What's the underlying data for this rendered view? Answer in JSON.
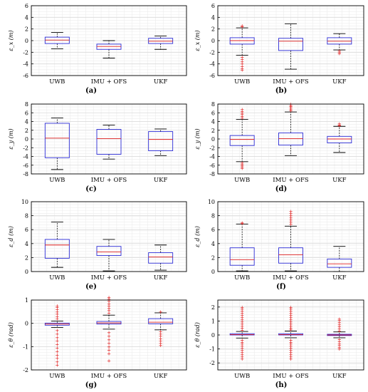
{
  "figure": {
    "panels": [
      {
        "letter": "(a)"
      },
      {
        "letter": "(b)"
      },
      {
        "letter": "(c)"
      },
      {
        "letter": "(d)"
      },
      {
        "letter": "(e)"
      },
      {
        "letter": "(f)"
      },
      {
        "letter": "(g)"
      },
      {
        "letter": "(h)"
      }
    ]
  },
  "colors": {
    "box": "#2b2bd6",
    "median": "#e02020",
    "whisker": "#000000",
    "outlier": "#e01010",
    "grid": "#d9d9d9"
  },
  "chart_data": [
    {
      "type": "box",
      "panel": "(a)",
      "ylabel": "ε_x (m)",
      "ylim": [
        -6,
        6
      ],
      "yticks": [
        "-6",
        "-4",
        "-2",
        "0",
        "2",
        "4",
        "6"
      ],
      "categories": [
        "UWB",
        "IMU + OFS",
        "UKF"
      ],
      "boxes": [
        {
          "whislo": -1.4,
          "q1": -0.5,
          "med": 0.1,
          "q3": 0.6,
          "whishi": 1.4,
          "outliers": []
        },
        {
          "whislo": -3.0,
          "q1": -1.5,
          "med": -1.0,
          "q3": -0.6,
          "whishi": 0.0,
          "outliers": []
        },
        {
          "whislo": -1.5,
          "q1": -0.5,
          "med": -0.1,
          "q3": 0.4,
          "whishi": 0.8,
          "outliers": []
        }
      ]
    },
    {
      "type": "box",
      "panel": "(b)",
      "ylabel": "ε_x (m)",
      "ylim": [
        -6,
        6
      ],
      "yticks": [
        "-6",
        "-4",
        "-2",
        "0",
        "2",
        "4",
        "6"
      ],
      "categories": [
        "UWB",
        "IMU + OFS",
        "UKF"
      ],
      "boxes": [
        {
          "whislo": -2.5,
          "q1": -0.6,
          "med": 0.0,
          "q3": 0.5,
          "whishi": 2.2,
          "outliers": [
            -2.8,
            -3.2,
            -3.6,
            -4.0,
            -4.4,
            -4.8,
            -5.0,
            2.4,
            2.6
          ]
        },
        {
          "whislo": -4.9,
          "q1": -1.7,
          "med": -0.1,
          "q3": 0.4,
          "whishi": 2.9,
          "outliers": []
        },
        {
          "whislo": -1.6,
          "q1": -0.6,
          "med": -0.1,
          "q3": 0.5,
          "whishi": 1.2,
          "outliers": [
            -1.8,
            -2.0,
            -2.2
          ]
        }
      ]
    },
    {
      "type": "box",
      "panel": "(c)",
      "ylabel": "ε_y (m)",
      "ylim": [
        -8,
        8
      ],
      "yticks": [
        "-8",
        "-6",
        "-4",
        "-2",
        "0",
        "2",
        "4",
        "6",
        "8"
      ],
      "categories": [
        "UWB",
        "IMU + OFS",
        "UKF"
      ],
      "boxes": [
        {
          "whislo": -7.0,
          "q1": -4.3,
          "med": 0.2,
          "q3": 3.6,
          "whishi": 4.8,
          "outliers": []
        },
        {
          "whislo": -4.6,
          "q1": -3.5,
          "med": 0.1,
          "q3": 2.2,
          "whishi": 3.2,
          "outliers": []
        },
        {
          "whislo": -3.8,
          "q1": -2.7,
          "med": -0.1,
          "q3": 1.7,
          "whishi": 2.3,
          "outliers": []
        }
      ]
    },
    {
      "type": "box",
      "panel": "(d)",
      "ylabel": "ε_y (m)",
      "ylim": [
        -8,
        8
      ],
      "yticks": [
        "-8",
        "-6",
        "-4",
        "-2",
        "0",
        "2",
        "4",
        "6",
        "8"
      ],
      "categories": [
        "UWB",
        "IMU + OFS",
        "UKF"
      ],
      "boxes": [
        {
          "whislo": -5.2,
          "q1": -1.5,
          "med": -0.1,
          "q3": 0.8,
          "whishi": 4.5,
          "outliers": [
            4.8,
            5.2,
            5.6,
            6.0,
            6.4,
            6.8,
            -5.5,
            -5.8,
            -6.1,
            -6.4,
            -6.7
          ]
        },
        {
          "whislo": -3.8,
          "q1": -1.4,
          "med": 0.1,
          "q3": 1.4,
          "whishi": 6.2,
          "outliers": [
            6.5,
            6.8,
            7.1,
            7.4,
            7.7,
            8.0
          ]
        },
        {
          "whislo": -3.1,
          "q1": -0.9,
          "med": 0.0,
          "q3": 0.6,
          "whishi": 2.9,
          "outliers": [
            3.1,
            3.3,
            3.5
          ]
        }
      ]
    },
    {
      "type": "box",
      "panel": "(e)",
      "ylabel": "ε_d (m)",
      "ylim": [
        0,
        10
      ],
      "yticks": [
        "0",
        "2",
        "4",
        "6",
        "8",
        "10"
      ],
      "categories": [
        "UWB",
        "IMU + OFS",
        "UKF"
      ],
      "boxes": [
        {
          "whislo": 0.6,
          "q1": 1.9,
          "med": 3.8,
          "q3": 4.6,
          "whishi": 7.1,
          "outliers": []
        },
        {
          "whislo": 0.1,
          "q1": 2.3,
          "med": 2.8,
          "q3": 3.6,
          "whishi": 4.6,
          "outliers": []
        },
        {
          "whislo": 0.2,
          "q1": 1.2,
          "med": 2.1,
          "q3": 2.7,
          "whishi": 3.8,
          "outliers": []
        }
      ]
    },
    {
      "type": "box",
      "panel": "(f)",
      "ylabel": "ε_d (m)",
      "ylim": [
        0,
        10
      ],
      "yticks": [
        "0",
        "2",
        "4",
        "6",
        "8",
        "10"
      ],
      "categories": [
        "UWB",
        "IMU + OFS",
        "UKF"
      ],
      "boxes": [
        {
          "whislo": 0.1,
          "q1": 0.9,
          "med": 1.7,
          "q3": 3.4,
          "whishi": 6.8,
          "outliers": [
            6.9,
            7.0
          ]
        },
        {
          "whislo": 0.1,
          "q1": 1.2,
          "med": 2.4,
          "q3": 3.4,
          "whishi": 6.5,
          "outliers": [
            6.8,
            7.1,
            7.4,
            7.7,
            8.0,
            8.3,
            8.6
          ]
        },
        {
          "whislo": 0.0,
          "q1": 0.6,
          "med": 1.1,
          "q3": 1.8,
          "whishi": 3.6,
          "outliers": []
        }
      ]
    },
    {
      "type": "box",
      "panel": "(g)",
      "ylabel": "ε_θ (rad)",
      "ylim": [
        -2,
        1
      ],
      "yticks": [
        "-2",
        "-1",
        "0",
        "1"
      ],
      "categories": [
        "UWB",
        "IMU + OFS",
        "UKF"
      ],
      "boxes": [
        {
          "whislo": -0.18,
          "q1": -0.08,
          "med": -0.03,
          "q3": 0.01,
          "whishi": 0.1,
          "outliers": [
            0.2,
            0.3,
            0.4,
            0.5,
            0.6,
            0.7,
            0.75,
            -0.3,
            -0.45,
            -0.6,
            -0.75,
            -0.9,
            -1.05,
            -1.2,
            -1.35,
            -1.5,
            -1.65,
            -1.78
          ]
        },
        {
          "whislo": -0.25,
          "q1": -0.03,
          "med": 0.02,
          "q3": 0.08,
          "whishi": 0.35,
          "outliers": [
            0.45,
            0.55,
            0.65,
            0.75,
            0.85,
            0.95,
            1.05,
            1.12,
            -0.4,
            -0.55,
            -0.7,
            -0.85,
            -1.0,
            -1.15,
            -1.3,
            -1.6
          ]
        },
        {
          "whislo": -0.28,
          "q1": -0.02,
          "med": 0.05,
          "q3": 0.2,
          "whishi": 0.45,
          "outliers": [
            0.5,
            -0.35,
            -0.45,
            -0.55,
            -0.65,
            -0.75,
            -0.85,
            -0.95
          ]
        }
      ]
    },
    {
      "type": "box",
      "panel": "(h)",
      "ylabel": "ε_θ (rad)",
      "ylim": [
        -2.5,
        2.5
      ],
      "yticks": [
        "-2",
        "-1",
        "0",
        "1",
        "2"
      ],
      "categories": [
        "UWB",
        "IMU + OFS",
        "UKF"
      ],
      "boxes": [
        {
          "whislo": -0.22,
          "q1": 0.0,
          "med": 0.03,
          "q3": 0.09,
          "whishi": 0.25,
          "outliers": [
            0.35,
            0.5,
            0.65,
            0.8,
            0.95,
            1.1,
            1.25,
            1.4,
            1.55,
            1.7,
            1.85,
            2.0,
            -0.35,
            -0.5,
            -0.65,
            -0.8,
            -0.95,
            -1.1,
            -1.25,
            -1.4,
            -1.55,
            -1.7
          ]
        },
        {
          "whislo": -0.2,
          "q1": 0.0,
          "med": 0.03,
          "q3": 0.09,
          "whishi": 0.28,
          "outliers": [
            0.38,
            0.5,
            0.65,
            0.8,
            0.95,
            1.1,
            1.25,
            1.4,
            1.55,
            1.7,
            1.85,
            1.98,
            -0.35,
            -0.5,
            -0.65,
            -0.8,
            -0.95,
            -1.1,
            -1.25,
            -1.4,
            -1.55,
            -1.72
          ]
        },
        {
          "whislo": -0.2,
          "q1": -0.04,
          "med": 0.0,
          "q3": 0.05,
          "whishi": 0.22,
          "outliers": [
            0.3,
            0.45,
            0.6,
            0.75,
            0.9,
            1.05,
            1.15,
            -0.3,
            -0.45,
            -0.6,
            -0.75,
            -0.9,
            -1.0
          ]
        }
      ]
    }
  ]
}
